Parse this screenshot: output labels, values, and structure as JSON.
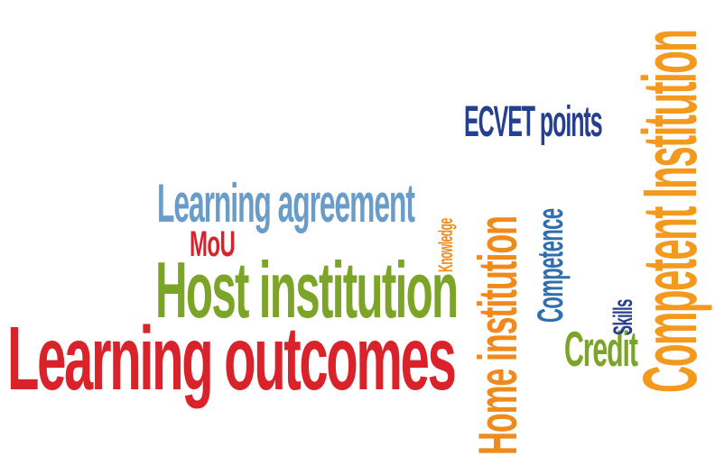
{
  "words": [
    {
      "id": "learning_outcomes",
      "text": "Learning outcomes",
      "color": "#d9222a",
      "orientation": "horizontal"
    },
    {
      "id": "host_institution",
      "text": "Host institution",
      "color": "#7ba428",
      "orientation": "horizontal"
    },
    {
      "id": "learning_agreement",
      "text": "Learning agreement",
      "color": "#6a9cc8",
      "orientation": "horizontal"
    },
    {
      "id": "mou",
      "text": "MoU",
      "color": "#d9222a",
      "orientation": "horizontal"
    },
    {
      "id": "ecvet_points",
      "text": "ECVET points",
      "color": "#253f8e",
      "orientation": "horizontal"
    },
    {
      "id": "credit",
      "text": "Credit",
      "color": "#7ba428",
      "orientation": "horizontal"
    },
    {
      "id": "home_institution",
      "text": "Home institution",
      "color": "#f08a1c",
      "orientation": "vertical"
    },
    {
      "id": "competent_institution",
      "text": "Competent Institution",
      "color": "#f39a1e",
      "orientation": "vertical"
    },
    {
      "id": "competence",
      "text": "Competence",
      "color": "#2f6fae",
      "orientation": "vertical"
    },
    {
      "id": "knowledge",
      "text": "Knowledge",
      "color": "#f08a1c",
      "orientation": "vertical"
    },
    {
      "id": "skills",
      "text": "Skills",
      "color": "#253f8e",
      "orientation": "vertical"
    }
  ]
}
